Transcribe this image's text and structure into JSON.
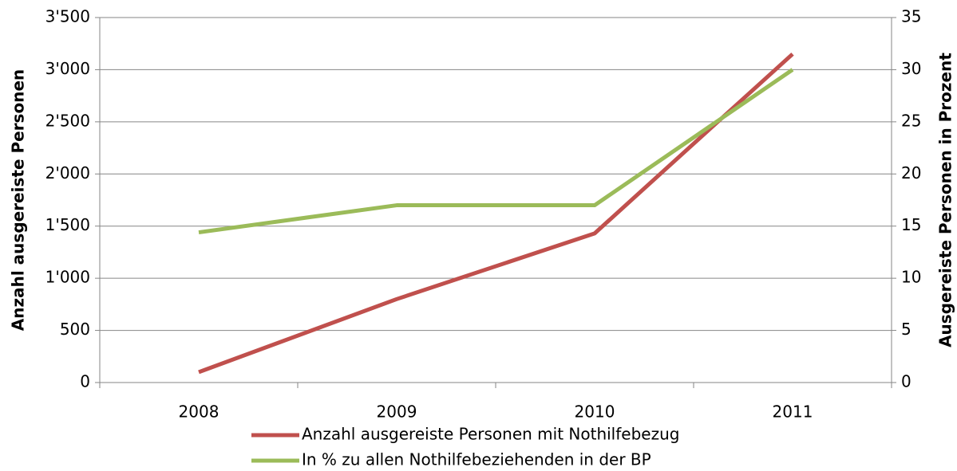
{
  "chart_data": {
    "type": "line",
    "categories": [
      "2008",
      "2009",
      "2010",
      "2011"
    ],
    "series": [
      {
        "name": "Anzahl ausgereiste Personen mit Nothilfebezug",
        "color": "#c0504d",
        "values": [
          100,
          800,
          1430,
          3150
        ]
      },
      {
        "name": "In % zu allen Nothilfebeziehenden in der BP",
        "color": "#9bbb59",
        "values": [
          14.4,
          17,
          17,
          30
        ],
        "axis": "y2"
      }
    ],
    "ylabel": "Anzahl ausgereiste Personen",
    "y2label": "Ausgereiste Personen in Prozent",
    "ylim": [
      0,
      3500
    ],
    "yticks": [
      0,
      500,
      {
        "value": 1000,
        "label": "1'000"
      },
      {
        "value": 1500,
        "label": "1'500"
      },
      {
        "value": 2000,
        "label": "2'000"
      },
      {
        "value": 2500,
        "label": "2'500"
      },
      {
        "value": 3000,
        "label": "3'000"
      },
      {
        "value": 3500,
        "label": "3'500"
      }
    ],
    "y2lim": [
      0,
      35
    ],
    "y2ticks": [
      0,
      5,
      10,
      15,
      20,
      25,
      30,
      35
    ],
    "grid": true,
    "legend": "bottom"
  }
}
